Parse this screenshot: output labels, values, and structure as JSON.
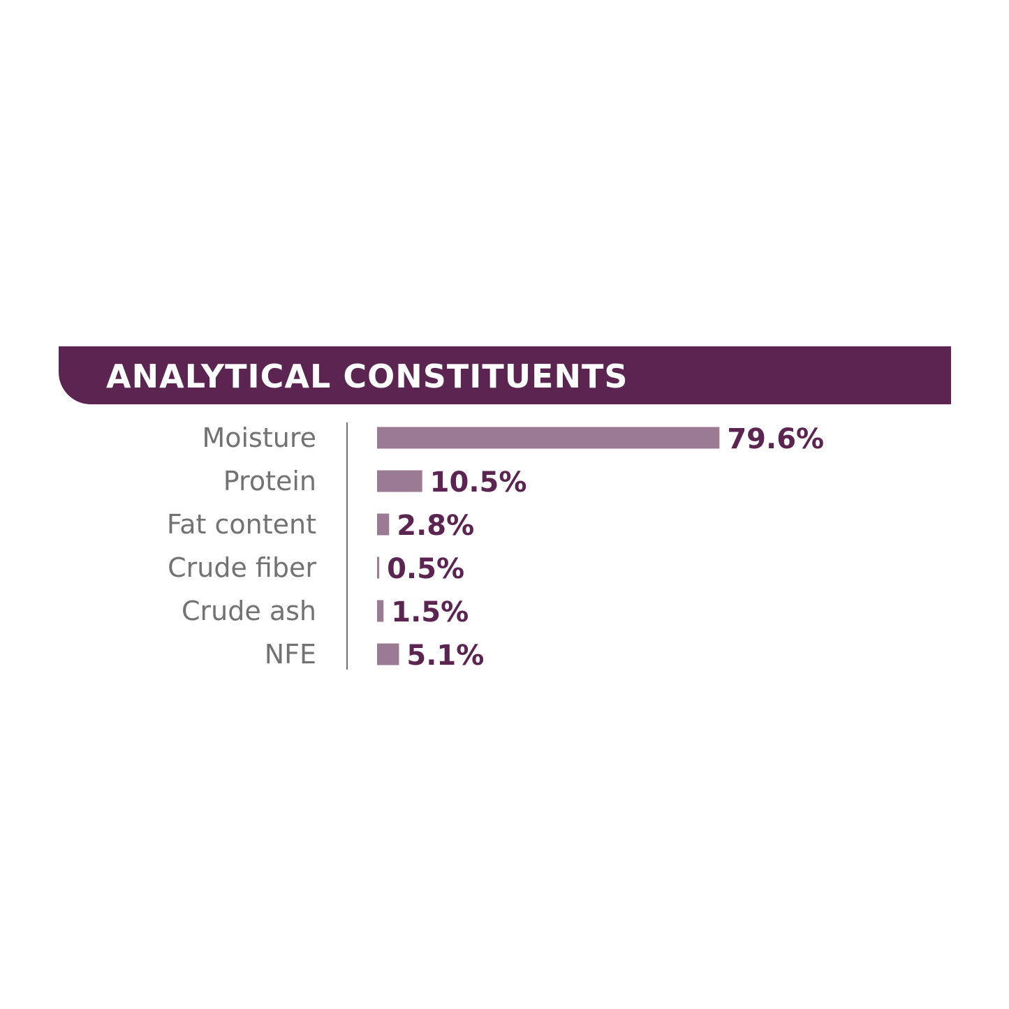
{
  "colors": {
    "banner": "#5b2451",
    "bar": "#9b7b94",
    "value_text": "#5b2451",
    "category_text": "#727272",
    "axis_line": "#727272"
  },
  "chart_data": {
    "type": "bar",
    "orientation": "horizontal",
    "title": "ANALYTICAL CONSTITUENTS",
    "categories": [
      "Moisture",
      "Protein",
      "Fat content",
      "Crude fiber",
      "Crude ash",
      "NFE"
    ],
    "values": [
      79.6,
      10.5,
      2.8,
      0.5,
      1.5,
      5.1
    ],
    "value_labels": [
      "79.6%",
      "10.5%",
      "2.8%",
      "0.5%",
      "1.5%",
      "5.1%"
    ],
    "unit": "%",
    "xlabel": "",
    "ylabel": "",
    "grid": false,
    "legend": "none"
  }
}
